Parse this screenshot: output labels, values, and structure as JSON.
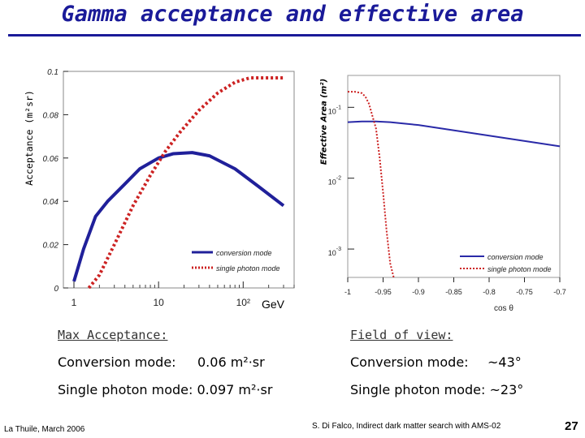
{
  "title": "Gamma acceptance and effective area",
  "chart_data": [
    {
      "type": "line",
      "ylabel": "Acceptance (m²sr)",
      "xlabel": "GeV",
      "xscale": "log",
      "xlim": [
        0.75,
        400
      ],
      "ylim": [
        0,
        0.1
      ],
      "xticks": [
        {
          "v": 1,
          "label": "1"
        },
        {
          "v": 10,
          "label": "10"
        },
        {
          "v": 100,
          "label": "10²"
        }
      ],
      "yticks": [
        {
          "v": 0,
          "label": "0"
        },
        {
          "v": 0.02,
          "label": "0.02"
        },
        {
          "v": 0.04,
          "label": "0.04"
        },
        {
          "v": 0.06,
          "label": "0.06"
        },
        {
          "v": 0.08,
          "label": "0.08"
        },
        {
          "v": 0.1,
          "label": "0.1"
        }
      ],
      "series": [
        {
          "name": "conversion mode",
          "color": "#20209a",
          "style": "solid",
          "x": [
            1.0,
            1.3,
            1.8,
            2.5,
            4,
            6,
            10,
            15,
            25,
            40,
            80,
            150,
            300
          ],
          "y": [
            0.003,
            0.018,
            0.033,
            0.04,
            0.048,
            0.055,
            0.06,
            0.062,
            0.0625,
            0.061,
            0.055,
            0.047,
            0.038
          ]
        },
        {
          "name": "single photon mode",
          "color": "#cc2222",
          "style": "dotted",
          "x": [
            1.5,
            2,
            3,
            5,
            8,
            12,
            18,
            30,
            50,
            80,
            120,
            200,
            300
          ],
          "y": [
            0,
            0.006,
            0.02,
            0.038,
            0.052,
            0.063,
            0.072,
            0.082,
            0.09,
            0.095,
            0.097,
            0.097,
            0.097
          ]
        }
      ]
    },
    {
      "type": "line",
      "ylabel": "Effective Area (m²)",
      "xlabel": "cos θ",
      "yscale": "log",
      "xlim": [
        -1,
        -0.7
      ],
      "ylim": [
        -3.4,
        -0.55
      ],
      "xticks": [
        {
          "v": -1,
          "label": "-1"
        },
        {
          "v": -0.95,
          "label": "-0.95"
        },
        {
          "v": -0.9,
          "label": "-0.9"
        },
        {
          "v": -0.85,
          "label": "-0.85"
        },
        {
          "v": -0.8,
          "label": "-0.8"
        },
        {
          "v": -0.75,
          "label": "-0.75"
        },
        {
          "v": -0.7,
          "label": "-0.7"
        }
      ],
      "yticks": [
        {
          "v": -1,
          "base": "10",
          "exp": "-1"
        },
        {
          "v": -2,
          "base": "10",
          "exp": "-2"
        },
        {
          "v": -3,
          "base": "10",
          "exp": "-3"
        }
      ],
      "series": [
        {
          "name": "conversion mode",
          "color": "#2a2aa8",
          "style": "solid",
          "x": [
            -1.0,
            -0.98,
            -0.96,
            -0.94,
            -0.92,
            -0.9,
            -0.88,
            -0.86,
            -0.84,
            -0.82,
            -0.8,
            -0.78,
            -0.76,
            -0.74,
            -0.72,
            -0.7
          ],
          "y": [
            -1.21,
            -1.2,
            -1.2,
            -1.21,
            -1.23,
            -1.25,
            -1.28,
            -1.31,
            -1.34,
            -1.37,
            -1.4,
            -1.43,
            -1.46,
            -1.49,
            -1.52,
            -1.55
          ]
        },
        {
          "name": "single photon mode",
          "color": "#cc2222",
          "style": "dotted",
          "x": [
            -1.0,
            -0.99,
            -0.98,
            -0.975,
            -0.97,
            -0.96,
            -0.955,
            -0.95,
            -0.945,
            -0.94,
            -0.935
          ],
          "y": [
            -0.78,
            -0.78,
            -0.8,
            -0.85,
            -0.95,
            -1.3,
            -1.7,
            -2.2,
            -2.75,
            -3.2,
            -3.4
          ]
        }
      ]
    }
  ],
  "info": {
    "max_acceptance_label": "Max Acceptance:",
    "conv_label": "Conversion mode:",
    "conv_value": "0.06   m²·sr",
    "single_line": "Single photon mode: 0.097 m²·sr",
    "fov_label": "Field of view:",
    "fov_conv_label": "Conversion mode:",
    "fov_conv_value": "~43°",
    "fov_single_line": "Single photon mode: ~23°"
  },
  "footer": {
    "left": "La Thuile, March 2006",
    "right": "S. Di Falco, Indirect dark matter search with AMS-02",
    "page": "27"
  }
}
